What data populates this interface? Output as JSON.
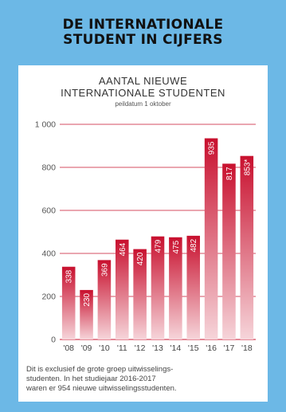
{
  "headline": {
    "line1": "DE INTERNATIONALE",
    "line2": "STUDENT IN CIJFERS"
  },
  "colors": {
    "background": "#6cb8e6",
    "bar_top": "#c8102e",
    "bar_bottom": "#f6d5da",
    "grid": "#c8102e"
  },
  "chart_data": {
    "type": "bar",
    "title": "AANTAL NIEUWE INTERNATIONALE STUDENTEN",
    "title_lines": [
      "AANTAL NIEUWE",
      "INTERNATIONALE STUDENTEN"
    ],
    "subtitle": "peildatum 1 oktober",
    "categories": [
      "'08",
      "'09",
      "'10",
      "'11",
      "'12",
      "'13",
      "'14",
      "'15",
      "'16",
      "'17",
      "'18"
    ],
    "values": [
      338,
      230,
      369,
      464,
      420,
      479,
      475,
      482,
      935,
      817,
      853
    ],
    "value_labels": [
      "338",
      "230",
      "369",
      "464",
      "420",
      "479",
      "475",
      "482",
      "935",
      "817",
      "853*"
    ],
    "y_ticks": [
      0,
      200,
      400,
      600,
      800,
      1000
    ],
    "y_tick_labels": [
      "0",
      "200",
      "400",
      "600",
      "800",
      "1 000"
    ],
    "ylim": [
      0,
      1000
    ],
    "grid": true,
    "xlabel": "",
    "ylabel": ""
  },
  "footnote": {
    "lines": [
      "Dit is exclusief de grote groep uitwisselings-",
      "studenten. In het studiejaar 2016-2017",
      "waren er 954 nieuwe uitwisselingsstudenten."
    ]
  }
}
